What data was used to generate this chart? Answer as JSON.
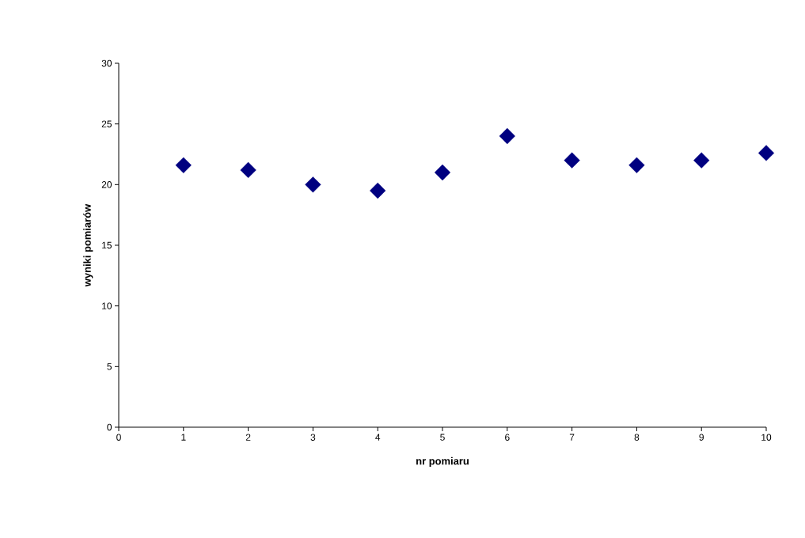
{
  "chart_data": {
    "type": "scatter",
    "xlabel": "nr pomiaru",
    "ylabel": "wyniki pomiarów",
    "x": [
      1,
      2,
      3,
      4,
      5,
      6,
      7,
      8,
      9,
      10
    ],
    "values": [
      21.6,
      21.2,
      20.0,
      19.5,
      21.0,
      24.0,
      22.0,
      21.6,
      22.0,
      22.6
    ],
    "color": "#000080",
    "marker": "diamond",
    "xlim": [
      0,
      10
    ],
    "ylim": [
      0,
      30
    ],
    "xticks": [
      0,
      1,
      2,
      3,
      4,
      5,
      6,
      7,
      8,
      9,
      10
    ],
    "yticks": [
      0,
      5,
      10,
      15,
      20,
      25,
      30
    ]
  }
}
